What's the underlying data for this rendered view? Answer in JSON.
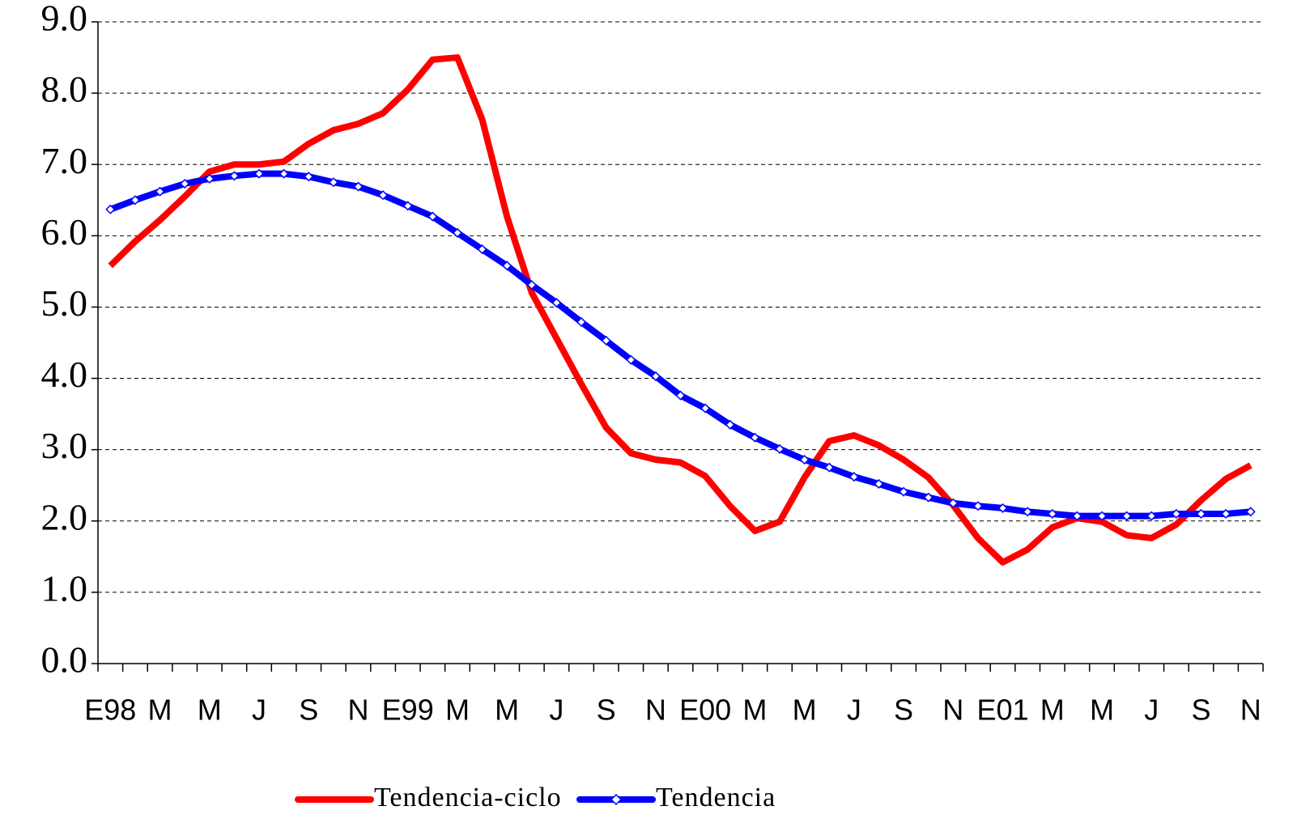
{
  "chart_data": {
    "type": "line",
    "categories": [
      "E98",
      null,
      "M",
      null,
      "M",
      null,
      "J",
      null,
      "S",
      null,
      "N",
      null,
      "E99",
      null,
      "M",
      null,
      "M",
      null,
      "J",
      null,
      "S",
      null,
      "N",
      null,
      "E00",
      null,
      "M",
      null,
      "M",
      null,
      "J",
      null,
      "S",
      null,
      "N",
      null,
      "E01",
      null,
      "M",
      null,
      "M",
      null,
      "J",
      null,
      "S",
      null,
      "N"
    ],
    "series": [
      {
        "name": "Tendencia-ciclo",
        "color": "#ff0000",
        "values": [
          5.58,
          5.92,
          6.22,
          6.55,
          6.9,
          7.0,
          7.0,
          7.04,
          7.29,
          7.48,
          7.57,
          7.72,
          8.05,
          8.47,
          8.5,
          7.63,
          6.27,
          5.2,
          4.56,
          3.92,
          3.31,
          2.95,
          2.86,
          2.82,
          2.63,
          2.21,
          1.86,
          1.99,
          2.61,
          3.12,
          3.2,
          3.06,
          2.86,
          2.61,
          2.22,
          1.76,
          1.42,
          1.6,
          1.91,
          2.04,
          1.99,
          1.8,
          1.76,
          1.95,
          2.29,
          2.59,
          2.78
        ]
      },
      {
        "name": "Tendencia",
        "color": "#0000ff",
        "marker": "diamond",
        "values": [
          6.37,
          6.5,
          6.62,
          6.73,
          6.8,
          6.84,
          6.87,
          6.87,
          6.83,
          6.75,
          6.69,
          6.57,
          6.42,
          6.27,
          6.04,
          5.81,
          5.58,
          5.31,
          5.06,
          4.79,
          4.53,
          4.26,
          4.03,
          3.76,
          3.58,
          3.35,
          3.17,
          3.01,
          2.86,
          2.75,
          2.62,
          2.52,
          2.41,
          2.33,
          2.25,
          2.21,
          2.18,
          2.13,
          2.1,
          2.07,
          2.07,
          2.07,
          2.07,
          2.1,
          2.1,
          2.1,
          2.13
        ]
      }
    ],
    "ylim": [
      0,
      9
    ],
    "yticks": [
      {
        "value": 0,
        "label": "0.0"
      },
      {
        "value": 1,
        "label": "1.0"
      },
      {
        "value": 2,
        "label": "2.0"
      },
      {
        "value": 3,
        "label": "3.0"
      },
      {
        "value": 4,
        "label": "4.0"
      },
      {
        "value": 5,
        "label": "5.0"
      },
      {
        "value": 6,
        "label": "6.0"
      },
      {
        "value": 7,
        "label": "7.0"
      },
      {
        "value": 8,
        "label": "8.0"
      },
      {
        "value": 9,
        "label": "9.0"
      }
    ],
    "grid": true,
    "legend": "bottom"
  }
}
